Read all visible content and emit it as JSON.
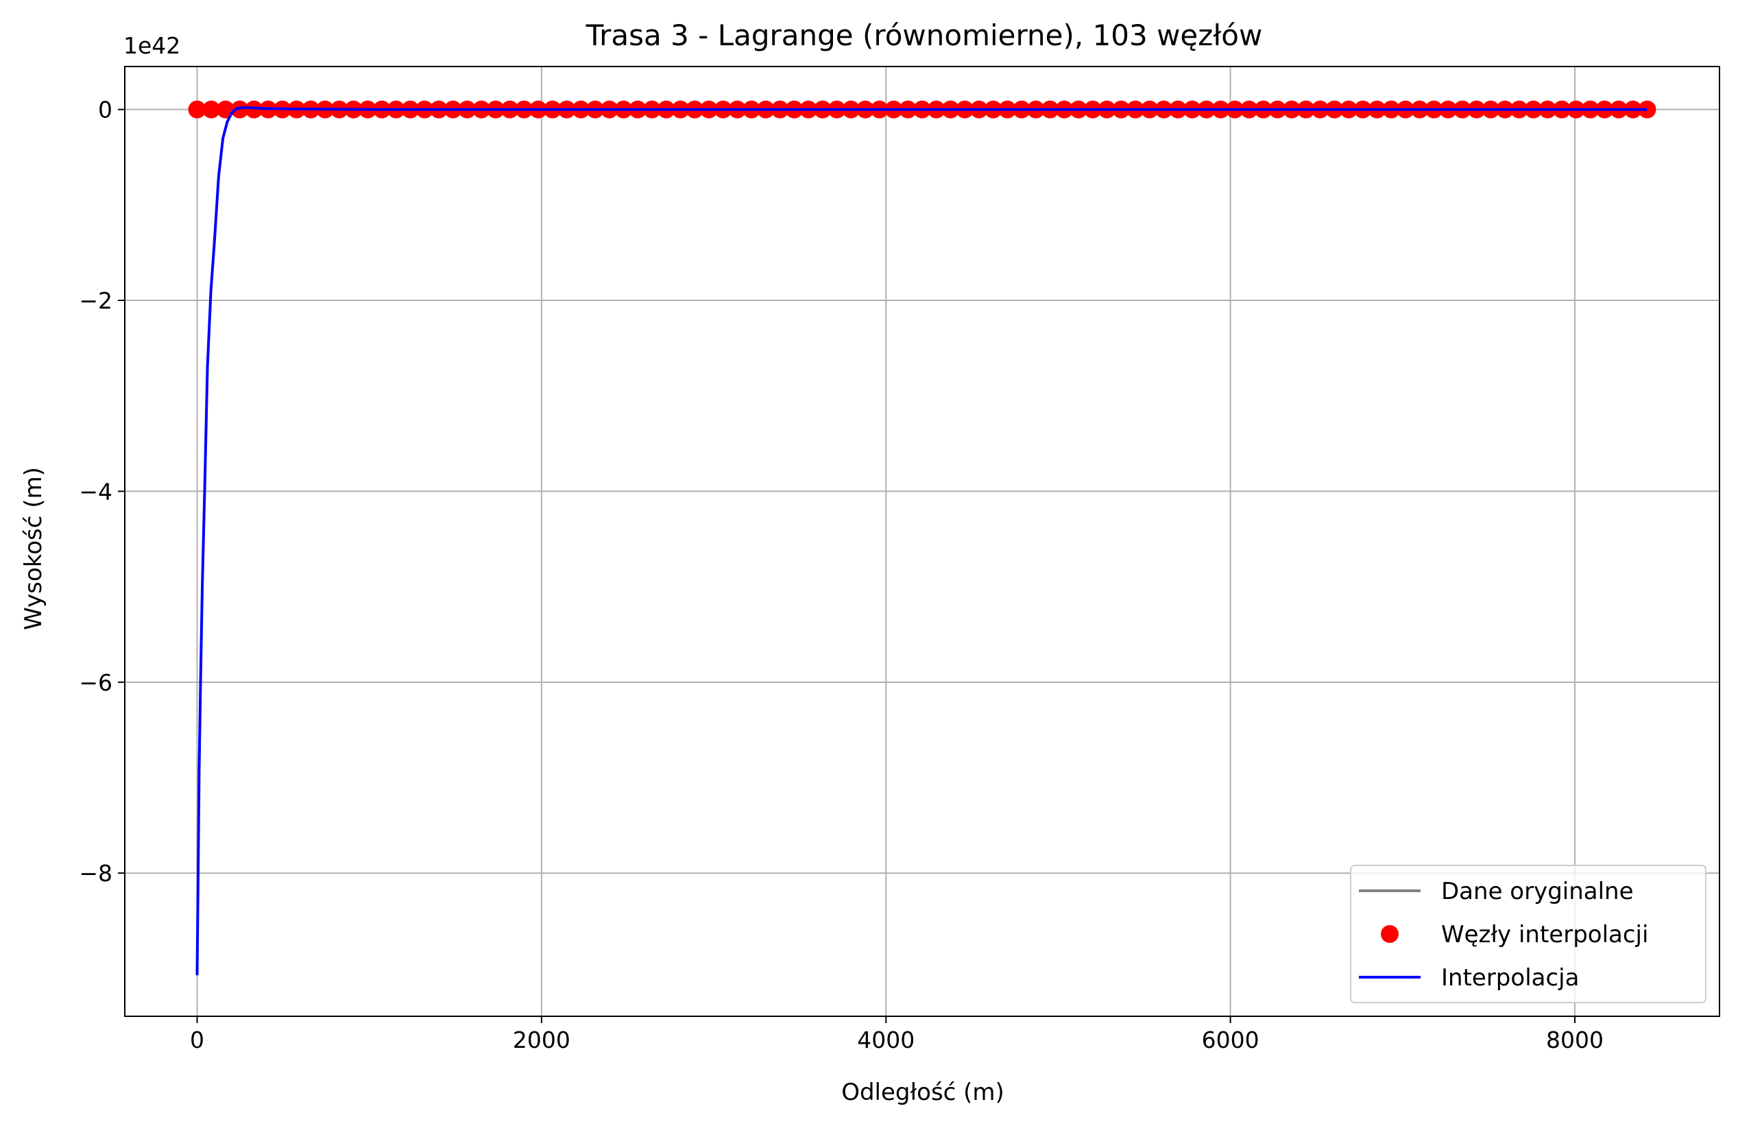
{
  "colors": {
    "original": "#808080",
    "nodes": "#ff0000",
    "interpolation": "#0000ff",
    "grid": "#b0b0b0",
    "axes": "#000000"
  },
  "chart_data": {
    "type": "line",
    "title": "Trasa 3 - Lagrange (równomierne), 103 węzłów",
    "xlabel": "Odległość (m)",
    "ylabel": "Wysokość (m)",
    "y_offset_label": "1e42",
    "xlim": [
      -420,
      8840
    ],
    "ylim": [
      -9.5,
      0.45
    ],
    "grid": true,
    "legend_position": "lower-right",
    "x_ticks": [
      0,
      2000,
      4000,
      6000,
      8000
    ],
    "x_tick_labels": [
      "0",
      "2000",
      "4000",
      "6000",
      "8000"
    ],
    "y_ticks": [
      0,
      -2,
      -4,
      -6,
      -8
    ],
    "y_tick_labels": [
      "0",
      "−2",
      "−4",
      "−6",
      "−8"
    ],
    "series": [
      {
        "name": "Dane oryginalne",
        "style": "line",
        "x": [
          0,
          8420
        ],
        "y": [
          0,
          0
        ]
      },
      {
        "name": "Węzły interpolacji",
        "style": "markers",
        "x_start": 0,
        "x_end": 8420,
        "count": 103,
        "y_value": 0
      },
      {
        "name": "Interpolacja",
        "style": "line",
        "x": [
          0,
          6,
          12,
          20,
          30,
          45,
          60,
          80,
          100,
          125,
          150,
          175,
          200,
          230,
          270,
          330,
          400,
          600,
          1000,
          2000,
          4000,
          6000,
          8000,
          8420
        ],
        "y": [
          -9.07,
          -8.0,
          -6.9,
          -6.0,
          -5.0,
          -3.9,
          -2.7,
          -1.9,
          -1.4,
          -0.7,
          -0.3,
          -0.13,
          -0.04,
          0.01,
          0.02,
          0.015,
          0.01,
          0.005,
          0,
          0,
          0,
          0,
          0,
          0
        ]
      }
    ]
  }
}
